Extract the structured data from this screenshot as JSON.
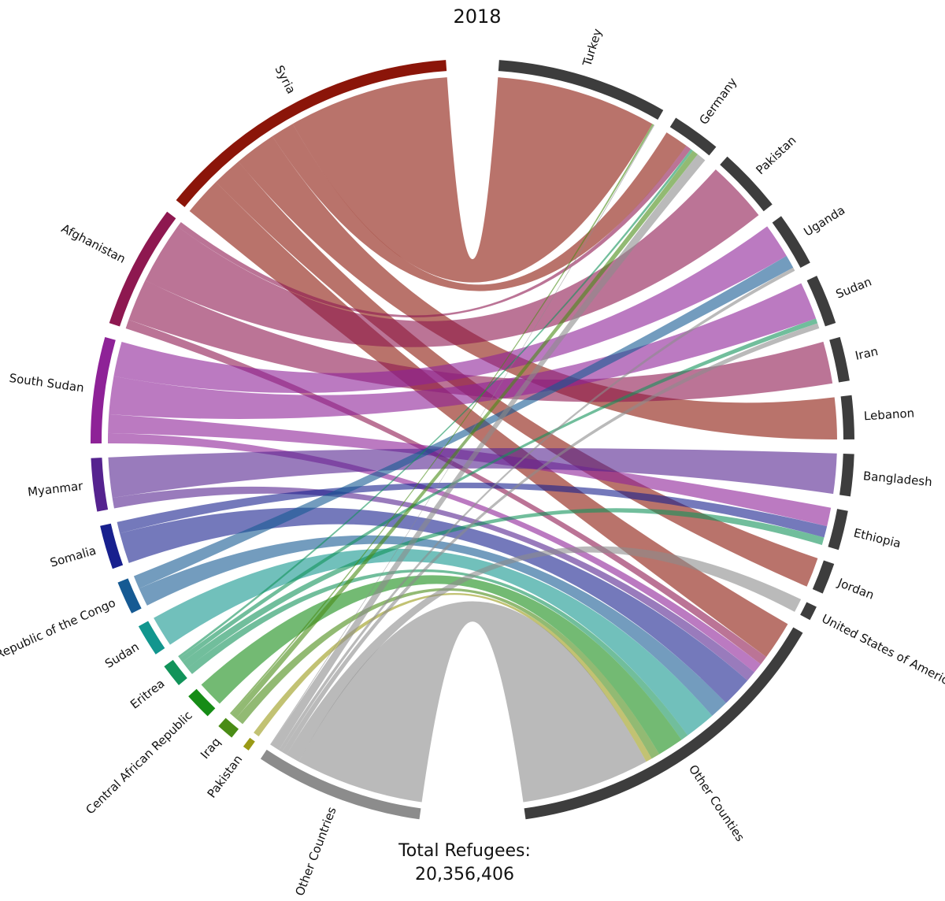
{
  "chart_data": {
    "type": "chord",
    "title": "2018",
    "total_label": "Total Refugees:",
    "total": "20,356,406",
    "origins": [
      {
        "name": "Syria",
        "color": "#8b1509"
      },
      {
        "name": "Afghanistan",
        "color": "#8e1850"
      },
      {
        "name": "South Sudan",
        "color": "#8e2297"
      },
      {
        "name": "Myanmar",
        "color": "#55238f"
      },
      {
        "name": "Somalia",
        "color": "#18208e"
      },
      {
        "name": "Democratic Republic of the Congo",
        "color": "#165a93"
      },
      {
        "name": "Sudan",
        "color": "#12968e"
      },
      {
        "name": "Eritrea",
        "color": "#12935a"
      },
      {
        "name": "Central African Republic",
        "color": "#168c16"
      },
      {
        "name": "Iraq",
        "color": "#4a8c16"
      },
      {
        "name": "Pakistan",
        "color": "#9a9a16"
      },
      {
        "name": "Other Countries",
        "color": "#8c8c8c"
      }
    ],
    "destinations": [
      {
        "name": "Turkey"
      },
      {
        "name": "Germany"
      },
      {
        "name": "Pakistan"
      },
      {
        "name": "Uganda"
      },
      {
        "name": "Sudan"
      },
      {
        "name": "Iran"
      },
      {
        "name": "Lebanon"
      },
      {
        "name": "Bangladesh"
      },
      {
        "name": "Ethiopia"
      },
      {
        "name": "Jordan"
      },
      {
        "name": "United States of America"
      },
      {
        "name": "Other Counties"
      }
    ],
    "destination_color": "#3d3d3d",
    "flows": [
      {
        "from": "Syria",
        "to": "Turkey",
        "value": 3622000
      },
      {
        "from": "Syria",
        "to": "Germany",
        "value": 532000
      },
      {
        "from": "Syria",
        "to": "Lebanon",
        "value": 944000
      },
      {
        "from": "Syria",
        "to": "Jordan",
        "value": 676000
      },
      {
        "from": "Syria",
        "to": "Other Counties",
        "value": 876000
      },
      {
        "from": "Afghanistan",
        "to": "Germany",
        "value": 126000
      },
      {
        "from": "Afghanistan",
        "to": "Pakistan",
        "value": 1400000
      },
      {
        "from": "Afghanistan",
        "to": "Iran",
        "value": 951000
      },
      {
        "from": "Afghanistan",
        "to": "Other Counties",
        "value": 203000
      },
      {
        "from": "South Sudan",
        "to": "Uganda",
        "value": 788000
      },
      {
        "from": "South Sudan",
        "to": "Sudan",
        "value": 852000
      },
      {
        "from": "South Sudan",
        "to": "Ethiopia",
        "value": 422000
      },
      {
        "from": "South Sudan",
        "to": "Other Counties",
        "value": 230000
      },
      {
        "from": "Myanmar",
        "to": "Bangladesh",
        "value": 906000
      },
      {
        "from": "Myanmar",
        "to": "Other Counties",
        "value": 239000
      },
      {
        "from": "Somalia",
        "to": "Ethiopia",
        "value": 257000
      },
      {
        "from": "Somalia",
        "to": "Other Counties",
        "value": 692000
      },
      {
        "from": "Democratic Republic of the Congo",
        "to": "Uganda",
        "value": 300000
      },
      {
        "from": "Democratic Republic of the Congo",
        "to": "Other Counties",
        "value": 420000
      },
      {
        "from": "Sudan",
        "to": "Other Counties",
        "value": 700000
      },
      {
        "from": "Eritrea",
        "to": "Germany",
        "value": 55000
      },
      {
        "from": "Eritrea",
        "to": "Sudan",
        "value": 110000
      },
      {
        "from": "Eritrea",
        "to": "Ethiopia",
        "value": 174000
      },
      {
        "from": "Eritrea",
        "to": "Other Counties",
        "value": 168000
      },
      {
        "from": "Central African Republic",
        "to": "Other Counties",
        "value": 590000
      },
      {
        "from": "Iraq",
        "to": "Turkey",
        "value": 40000
      },
      {
        "from": "Iraq",
        "to": "Germany",
        "value": 136000
      },
      {
        "from": "Iraq",
        "to": "Other Counties",
        "value": 196000
      },
      {
        "from": "Pakistan",
        "to": "Other Counties",
        "value": 140000
      },
      {
        "from": "Other Countries",
        "to": "Turkey",
        "value": 20000
      },
      {
        "from": "Other Countries",
        "to": "Germany",
        "value": 211000
      },
      {
        "from": "Other Countries",
        "to": "Uganda",
        "value": 80000
      },
      {
        "from": "Other Countries",
        "to": "Sudan",
        "value": 120000
      },
      {
        "from": "Other Countries",
        "to": "United States of America",
        "value": 313000
      },
      {
        "from": "Other Countries",
        "to": "Other Counties",
        "value": 2900000
      }
    ]
  }
}
